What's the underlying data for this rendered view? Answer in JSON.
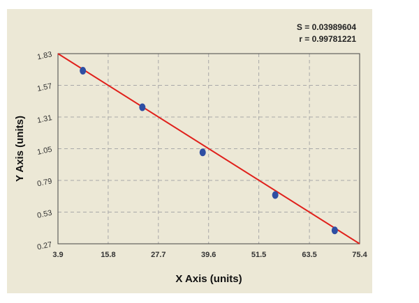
{
  "stats": {
    "s_label": "S = 0.03989604",
    "r_label": "r = 0.99781221"
  },
  "chart_data": {
    "type": "scatter",
    "title": "",
    "xlabel": "X Axis (units)",
    "ylabel": "Y Axis (units)",
    "xlim": [
      3.9,
      75.4
    ],
    "ylim": [
      0.27,
      1.83
    ],
    "x_ticks": [
      3.9,
      15.8,
      27.7,
      39.6,
      51.5,
      63.5,
      75.4
    ],
    "x_tick_labels": [
      "3.9",
      "15.8",
      "27.7",
      "39.6",
      "51.5",
      "63.5",
      "75.4"
    ],
    "y_ticks": [
      0.27,
      0.53,
      0.79,
      1.05,
      1.31,
      1.57,
      1.83
    ],
    "y_tick_labels": [
      "0.27",
      "0.53",
      "0.79",
      "1.05",
      "1.31",
      "1.57",
      "1.83"
    ],
    "grid": true,
    "points": {
      "x": [
        9.8,
        23.9,
        38.2,
        55.4,
        69.5
      ],
      "y": [
        1.69,
        1.39,
        1.02,
        0.67,
        0.38
      ]
    },
    "fit_line": {
      "x": [
        3.9,
        75.4
      ],
      "y": [
        1.83,
        0.27
      ]
    },
    "colors": {
      "background": "#ece8d6",
      "points": "#2e4ea3",
      "fit_line": "#e0201b",
      "grid": "#a8a8a8"
    }
  }
}
